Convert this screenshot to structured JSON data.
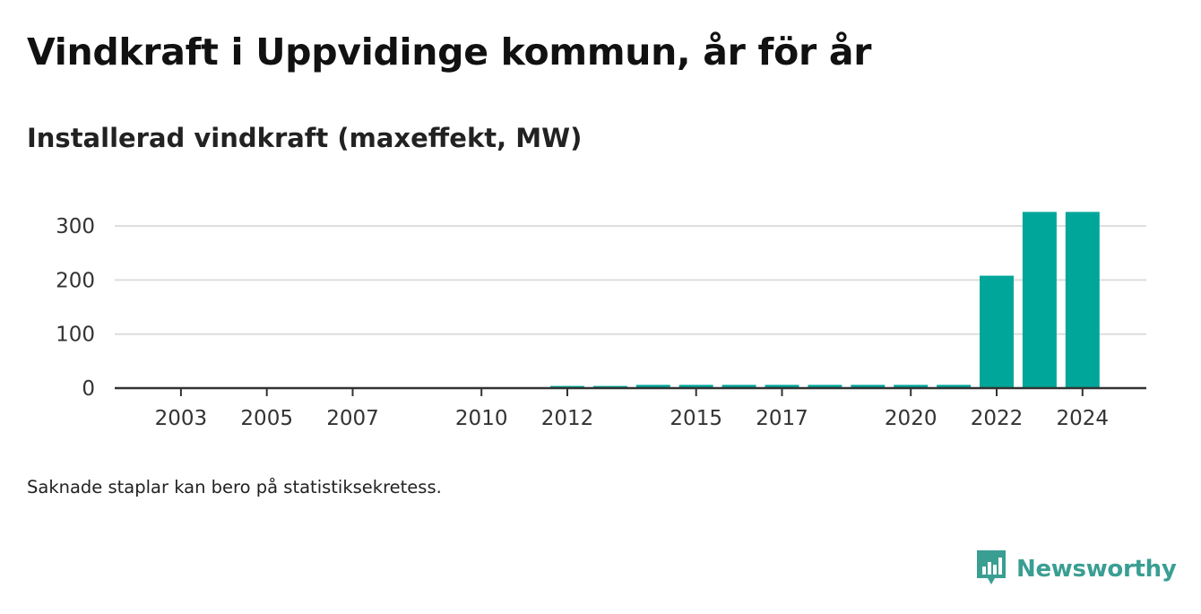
{
  "header": {
    "title": "Vindkraft i Uppvidinge kommun, år för år",
    "subtitle": "Installerad vindkraft (maxeffekt, MW)"
  },
  "footer": {
    "note": "Saknade staplar kan bero på statistiksekretess.",
    "brand": "Newsworthy",
    "brand_icon": "newsworthy-logo-icon"
  },
  "colors": {
    "bar": "#00a69a",
    "grid": "#dddddd",
    "axis": "#333333",
    "brand": "#3a9e93"
  },
  "chart_data": {
    "type": "bar",
    "title": "Installerad vindkraft (maxeffekt, MW)",
    "xlabel": "",
    "ylabel": "",
    "ylim": [
      0,
      330
    ],
    "grid": true,
    "legend": "none",
    "x_tick_labels": [
      "2003",
      "2005",
      "2007",
      "2010",
      "2012",
      "2015",
      "2017",
      "2020",
      "2022",
      "2024"
    ],
    "y_tick_labels": [
      "0",
      "100",
      "200",
      "300"
    ],
    "y_ticks": [
      0,
      100,
      200,
      300
    ],
    "categories": [
      2002,
      2003,
      2004,
      2005,
      2006,
      2007,
      2008,
      2009,
      2010,
      2011,
      2012,
      2013,
      2014,
      2015,
      2016,
      2017,
      2018,
      2019,
      2020,
      2021,
      2022,
      2023,
      2024
    ],
    "values": [
      0,
      0,
      0,
      0,
      0,
      0,
      0,
      0,
      0,
      0,
      4,
      4,
      6,
      6,
      6,
      6,
      6,
      6,
      6,
      6,
      208,
      326,
      326
    ]
  }
}
